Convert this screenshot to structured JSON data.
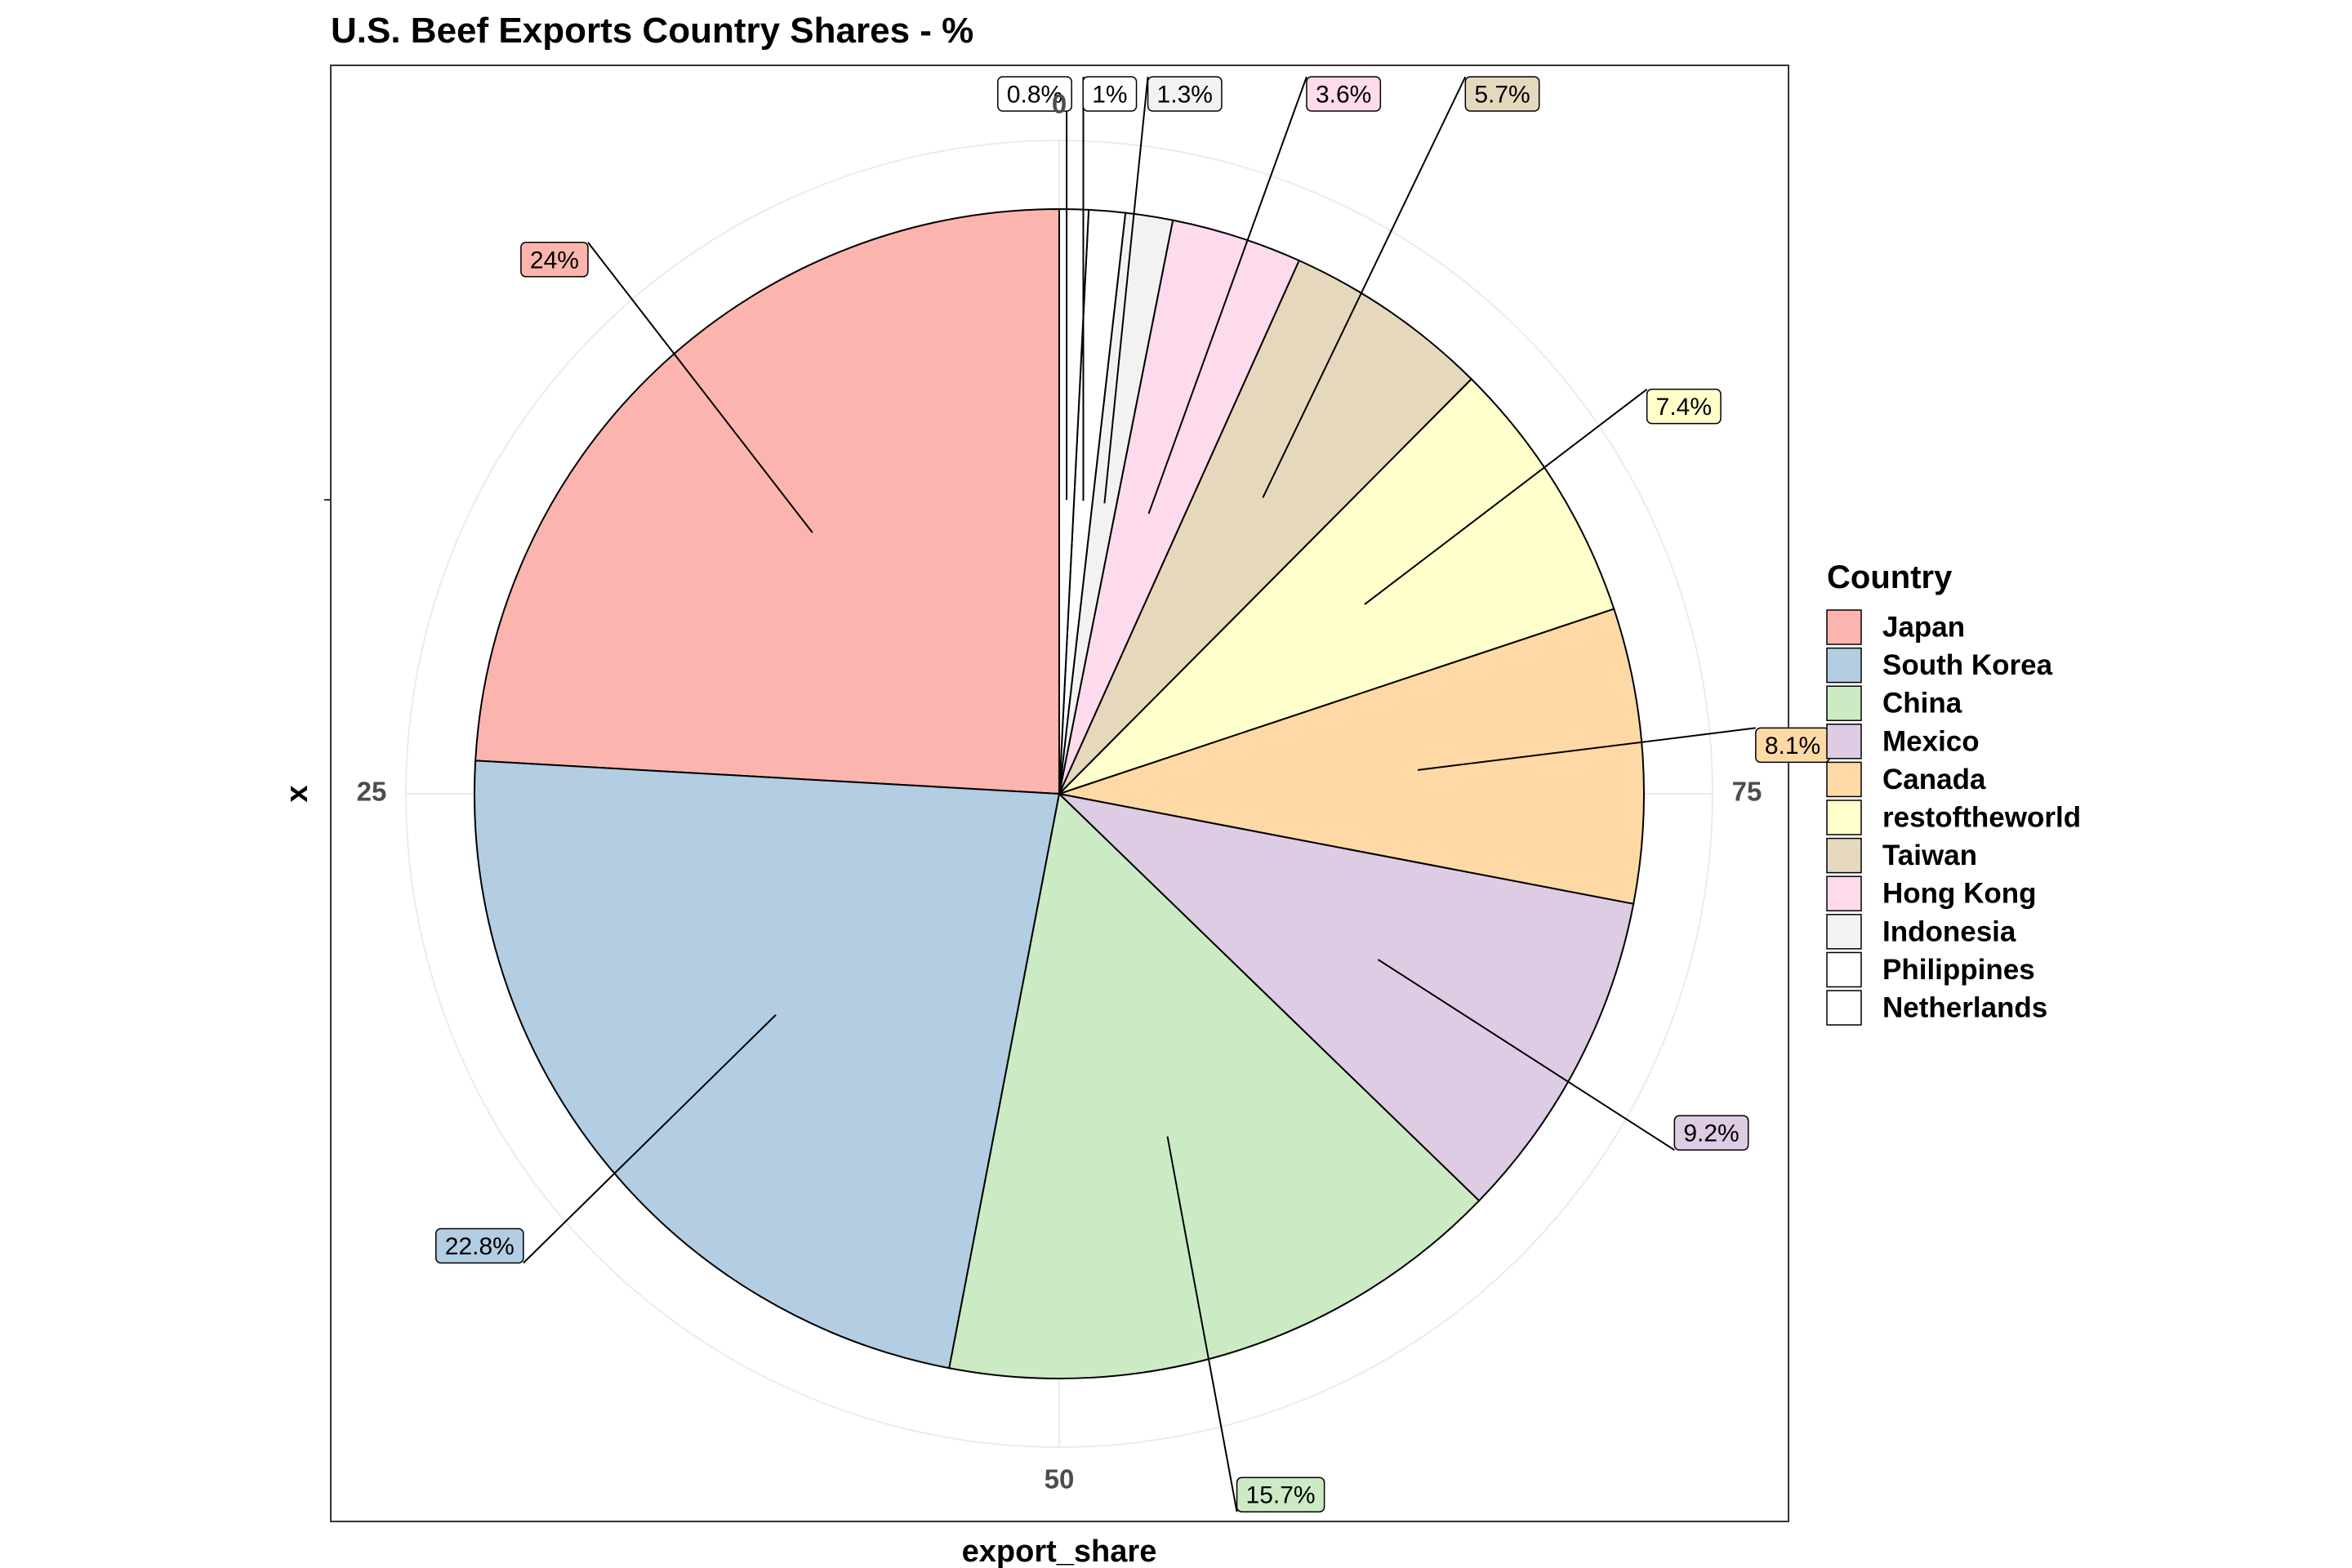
{
  "chart_data": {
    "type": "pie",
    "title": "U.S. Beef Exports Country Shares - %",
    "xlabel": "export_share",
    "ylabel": "x",
    "theta_ticks": [
      "0",
      "25",
      "50",
      "75"
    ],
    "legend": {
      "title": "Country",
      "position": "right"
    },
    "slices": [
      {
        "name": "Japan",
        "value": 24.0,
        "label": "24%",
        "color": "#FBB4AE"
      },
      {
        "name": "South Korea",
        "value": 22.8,
        "label": "22.8%",
        "color": "#B3CDE3"
      },
      {
        "name": "China",
        "value": 15.7,
        "label": "15.7%",
        "color": "#CCEBC5"
      },
      {
        "name": "Mexico",
        "value": 9.2,
        "label": "9.2%",
        "color": "#DECBE4"
      },
      {
        "name": "Canada",
        "value": 8.1,
        "label": "8.1%",
        "color": "#FED9A6"
      },
      {
        "name": "restoftheworld",
        "value": 7.4,
        "label": "7.4%",
        "color": "#FFFFCC"
      },
      {
        "name": "Taiwan",
        "value": 5.7,
        "label": "5.7%",
        "color": "#E5D8BD"
      },
      {
        "name": "Hong Kong",
        "value": 3.6,
        "label": "3.6%",
        "color": "#FDDAEC"
      },
      {
        "name": "Indonesia",
        "value": 1.3,
        "label": "1.3%",
        "color": "#F2F2F2"
      },
      {
        "name": "Philippines",
        "value": 1.0,
        "label": "1%",
        "color": "#FFFFFF"
      },
      {
        "name": "Netherlands",
        "value": 0.8,
        "label": "0.8%",
        "color": "#FFFFFF"
      }
    ],
    "grid": true
  }
}
